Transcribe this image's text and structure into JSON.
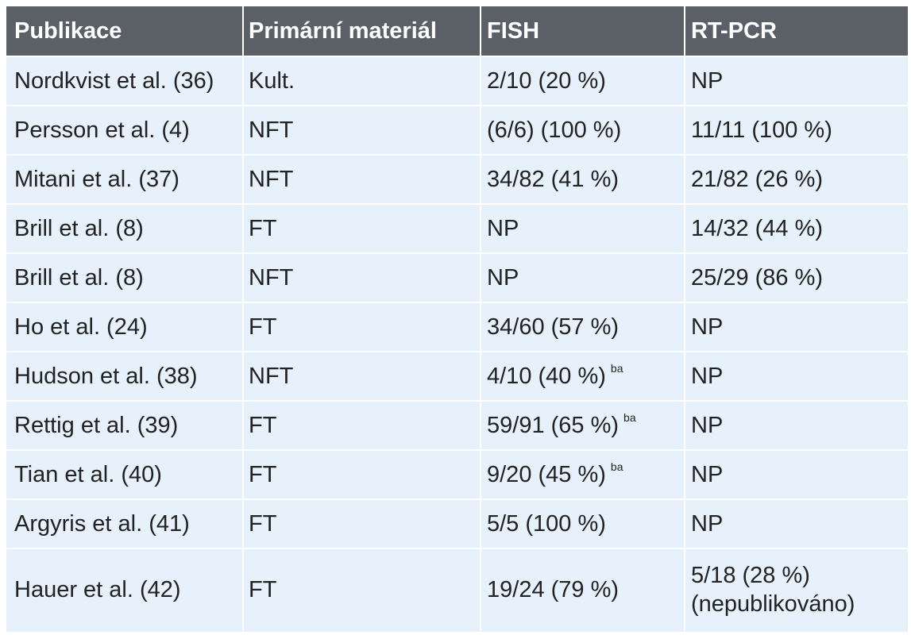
{
  "table": {
    "headers": [
      "Publikace",
      "Primární materiál",
      "FISH",
      "RT-PCR"
    ],
    "rows": [
      {
        "pub": "Nordkvist et al. (36)",
        "material": "Kult.",
        "fish": "2/10 (20 %)",
        "fish_sup": "",
        "rtpcr": "NP",
        "rtpcr_note": ""
      },
      {
        "pub": "Persson et al. (4)",
        "material": "NFT",
        "fish": "(6/6) (100 %)",
        "fish_sup": "",
        "rtpcr": "11/11 (100 %)",
        "rtpcr_note": ""
      },
      {
        "pub": "Mitani et al. (37)",
        "material": "NFT",
        "fish": "34/82 (41 %)",
        "fish_sup": "",
        "rtpcr": "21/82 (26 %)",
        "rtpcr_note": ""
      },
      {
        "pub": "Brill et al. (8)",
        "material": "FT",
        "fish": "NP",
        "fish_sup": "",
        "rtpcr": "14/32 (44 %)",
        "rtpcr_note": ""
      },
      {
        "pub": "Brill et al. (8)",
        "material": "NFT",
        "fish": "NP",
        "fish_sup": "",
        "rtpcr": "25/29 (86 %)",
        "rtpcr_note": ""
      },
      {
        "pub": "Ho et al. (24)",
        "material": "FT",
        "fish": "34/60 (57 %)",
        "fish_sup": "",
        "rtpcr": "NP",
        "rtpcr_note": ""
      },
      {
        "pub": "Hudson et al. (38)",
        "material": "NFT",
        "fish": "4/10 (40 %)",
        "fish_sup": "ba",
        "rtpcr": "NP",
        "rtpcr_note": ""
      },
      {
        "pub": "Rettig et al. (39)",
        "material": "FT",
        "fish": "59/91 (65 %)",
        "fish_sup": "ba",
        "rtpcr": "NP",
        "rtpcr_note": ""
      },
      {
        "pub": "Tian et al. (40)",
        "material": "FT",
        "fish": "9/20 (45 %)",
        "fish_sup": "ba",
        "rtpcr": "NP",
        "rtpcr_note": ""
      },
      {
        "pub": "Argyris et al. (41)",
        "material": "FT",
        "fish": "5/5 (100 %)",
        "fish_sup": "",
        "rtpcr": "NP",
        "rtpcr_note": ""
      },
      {
        "pub": "Hauer et al. (42)",
        "material": "FT",
        "fish": "19/24 (79 %)",
        "fish_sup": "",
        "rtpcr": "5/18 (28 %)",
        "rtpcr_note": "(nepublikováno)"
      }
    ]
  }
}
